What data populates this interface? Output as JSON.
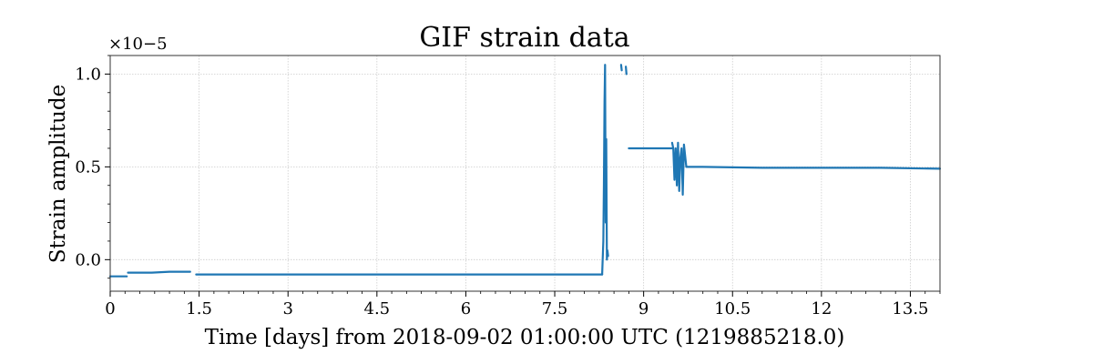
{
  "chart_data": {
    "type": "line",
    "title": "GIF strain data",
    "xlabel": "Time [days] from 2018-09-02 01:00:00 UTC (1219885218.0)",
    "ylabel": "Strain amplitude",
    "y_multiplier": "×10−5",
    "xlim": [
      0,
      14
    ],
    "ylim": [
      -0.17,
      1.1
    ],
    "x_ticks": [
      0,
      1.5,
      3,
      4.5,
      6,
      7.5,
      9,
      10.5,
      12,
      13.5
    ],
    "x_tick_labels": [
      "0",
      "1.5",
      "3",
      "4.5",
      "6",
      "7.5",
      "9",
      "10.5",
      "12",
      "13.5"
    ],
    "y_ticks": [
      0,
      0.5,
      1.0
    ],
    "y_tick_labels": [
      "0.0",
      "0.5",
      "1.0"
    ],
    "grid": true,
    "line_color": "#1f77b4",
    "series": [
      {
        "segments": [
          [
            [
              0.0,
              -0.09
            ],
            [
              0.28,
              -0.09
            ]
          ],
          [
            [
              0.3,
              -0.07
            ],
            [
              0.7,
              -0.07
            ],
            [
              1.0,
              -0.065
            ],
            [
              1.35,
              -0.065
            ]
          ],
          [
            [
              1.45,
              -0.08
            ],
            [
              2.5,
              -0.08
            ],
            [
              3.5,
              -0.08
            ],
            [
              4.5,
              -0.08
            ],
            [
              5.5,
              -0.08
            ],
            [
              6.5,
              -0.08
            ],
            [
              7.5,
              -0.08
            ],
            [
              8.3,
              -0.08
            ]
          ],
          [
            [
              8.3,
              -0.08
            ],
            [
              8.32,
              0.1
            ],
            [
              8.33,
              0.4
            ],
            [
              8.34,
              0.85
            ],
            [
              8.35,
              1.05
            ],
            [
              8.36,
              0.2
            ],
            [
              8.37,
              0.65
            ],
            [
              8.38,
              0.0
            ],
            [
              8.39,
              0.05
            ],
            [
              8.4,
              0.02
            ]
          ],
          [
            [
              8.62,
              1.05
            ],
            [
              8.63,
              1.02
            ]
          ],
          [
            [
              8.7,
              1.04
            ],
            [
              8.71,
              1.0
            ]
          ],
          [
            [
              8.75,
              0.6
            ],
            [
              9.2,
              0.6
            ],
            [
              9.48,
              0.6
            ]
          ],
          [
            [
              9.48,
              0.63
            ],
            [
              9.5,
              0.6
            ],
            [
              9.52,
              0.43
            ],
            [
              9.54,
              0.6
            ],
            [
              9.56,
              0.4
            ],
            [
              9.58,
              0.63
            ],
            [
              9.6,
              0.37
            ],
            [
              9.62,
              0.55
            ],
            [
              9.64,
              0.6
            ],
            [
              9.66,
              0.35
            ],
            [
              9.68,
              0.62
            ],
            [
              9.72,
              0.5
            ],
            [
              10.0,
              0.5
            ],
            [
              11.0,
              0.495
            ],
            [
              12.0,
              0.495
            ],
            [
              13.0,
              0.495
            ],
            [
              14.0,
              0.49
            ]
          ]
        ]
      }
    ]
  }
}
